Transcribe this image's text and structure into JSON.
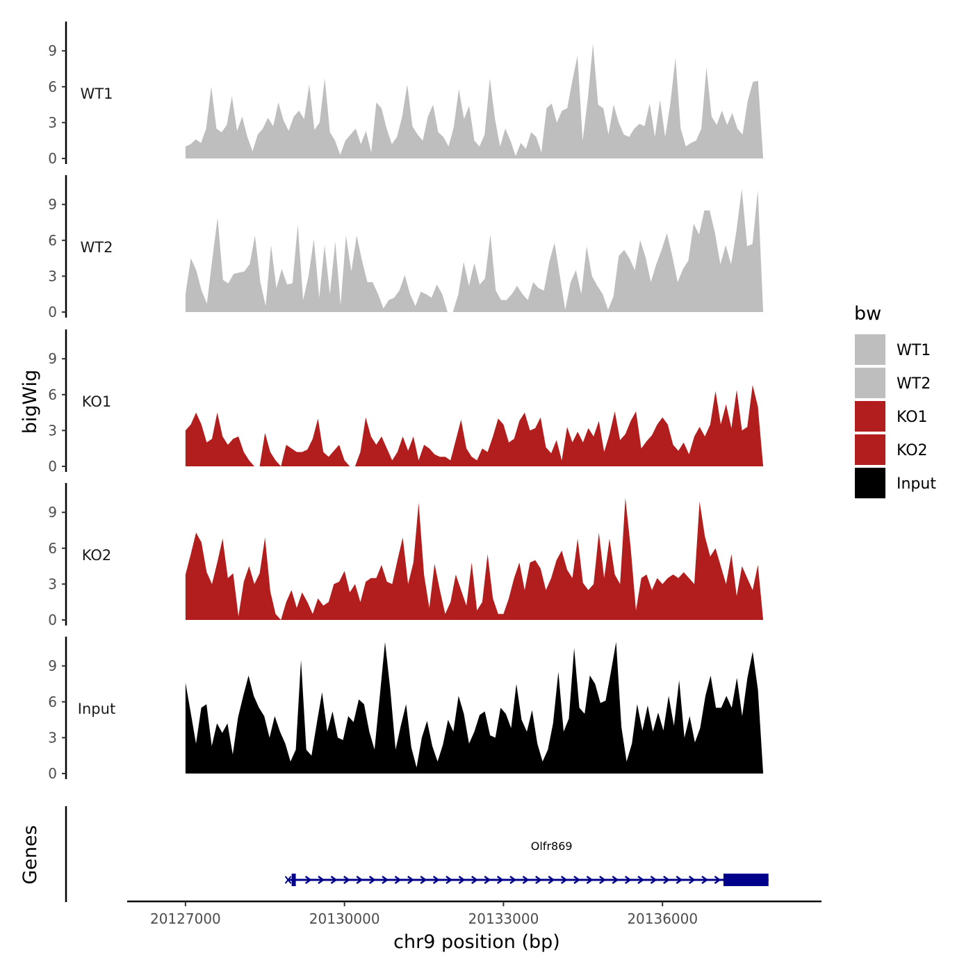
{
  "chart_data": {
    "type": "area",
    "ylabel": "bigWig",
    "xlabel": "chr9 position (bp)",
    "ylim": [
      0,
      11.8
    ],
    "y_ticks": [
      {
        "v": 0,
        "label": "0"
      },
      {
        "v": 3,
        "label": "3"
      },
      {
        "v": 6,
        "label": "6"
      },
      {
        "v": 9,
        "label": "9"
      }
    ],
    "xlim": [
      20125900,
      20139000
    ],
    "x_ticks": [
      {
        "v": 20127000,
        "label": "20127000"
      },
      {
        "v": 20130000,
        "label": "20130000"
      },
      {
        "v": 20133000,
        "label": "20133000"
      },
      {
        "v": 20136000,
        "label": "20136000"
      }
    ],
    "data_start": 20127000,
    "data_end": 20137900,
    "legend": {
      "title": "bw",
      "entries": [
        {
          "label": "WT1",
          "color": "#bebebe"
        },
        {
          "label": "WT2",
          "color": "#bebebe"
        },
        {
          "label": "KO1",
          "color": "#b21e1e"
        },
        {
          "label": "KO2",
          "color": "#b21e1e"
        },
        {
          "label": "Input",
          "color": "#000000"
        }
      ]
    },
    "series": [
      {
        "name": "WT1",
        "color": "#bebebe",
        "values": [
          1.0,
          1.2,
          1.6,
          1.3,
          2.5,
          6.0,
          2.5,
          2.2,
          2.8,
          5.2,
          2.3,
          3.5,
          1.8,
          0.6,
          2.0,
          2.5,
          3.4,
          2.7,
          4.7,
          3.2,
          2.3,
          3.5,
          4.0,
          3.3,
          6.2,
          2.4,
          3.0,
          6.7,
          2.2,
          1.5,
          0.3,
          1.5,
          2.0,
          2.5,
          1.2,
          2.3,
          0.5,
          4.7,
          4.2,
          2.5,
          1.2,
          1.8,
          3.5,
          6.2,
          2.7,
          2.0,
          1.5,
          3.5,
          4.5,
          2.2,
          1.8,
          1.0,
          2.6,
          5.8,
          3.3,
          4.4,
          1.5,
          1.0,
          2.0,
          6.7,
          3.3,
          1.0,
          2.5,
          1.5,
          0.2,
          1.3,
          0.8,
          2.2,
          1.8,
          0.5,
          4.2,
          4.6,
          3.0,
          4.0,
          4.2,
          6.5,
          8.6,
          1.5,
          5.0,
          9.6,
          4.5,
          4.2,
          2.0,
          4.5,
          3.0,
          2.0,
          1.8,
          2.5,
          2.9,
          2.7,
          4.6,
          1.8,
          4.9,
          1.8,
          4.6,
          8.4,
          2.5,
          1.0,
          1.3,
          1.5,
          2.5,
          7.6,
          3.5,
          2.8,
          4.0,
          2.8,
          3.8,
          2.5,
          2.0,
          4.8,
          6.4,
          6.5,
          0.0
        ]
      },
      {
        "name": "WT2",
        "color": "#bebebe",
        "values": [
          1.5,
          4.5,
          3.5,
          1.8,
          0.7,
          4.4,
          7.9,
          2.7,
          2.4,
          3.2,
          3.3,
          3.4,
          4.0,
          6.4,
          2.5,
          0.5,
          5.6,
          2.0,
          3.6,
          2.3,
          2.4,
          7.3,
          1.0,
          3.0,
          6.1,
          1.2,
          5.6,
          1.5,
          5.9,
          0.6,
          6.4,
          3.4,
          6.4,
          4.3,
          2.5,
          2.5,
          1.5,
          0.3,
          1.0,
          1.2,
          1.8,
          3.1,
          1.5,
          0.5,
          1.7,
          1.5,
          1.2,
          2.3,
          1.5,
          0.0,
          0.0,
          1.5,
          4.2,
          2.2,
          4.1,
          2.3,
          2.8,
          6.5,
          1.8,
          1.0,
          1.0,
          1.5,
          2.2,
          1.5,
          1.0,
          2.5,
          2.0,
          1.8,
          4.2,
          5.8,
          3.0,
          0.2,
          2.5,
          3.5,
          1.5,
          5.5,
          3.0,
          2.2,
          1.5,
          0.2,
          1.3,
          4.7,
          5.2,
          4.5,
          3.5,
          6.0,
          4.6,
          2.5,
          4.0,
          5.2,
          6.6,
          4.7,
          2.5,
          3.6,
          4.3,
          7.4,
          6.5,
          8.5,
          8.5,
          6.6,
          4.0,
          5.6,
          4.0,
          6.8,
          10.3,
          5.5,
          5.7,
          10.2,
          0.0
        ]
      },
      {
        "name": "KO1",
        "color": "#b21e1e",
        "values": [
          3.0,
          3.5,
          4.5,
          3.5,
          2.0,
          2.3,
          4.5,
          2.5,
          1.8,
          2.3,
          2.5,
          1.2,
          0.5,
          0.0,
          0.0,
          2.8,
          1.2,
          0.5,
          0.0,
          1.8,
          1.5,
          1.2,
          1.2,
          1.4,
          2.3,
          4.0,
          1.2,
          0.8,
          1.3,
          1.8,
          0.5,
          0.0,
          0.0,
          1.2,
          4.1,
          2.5,
          1.8,
          2.5,
          1.5,
          0.5,
          1.2,
          2.5,
          1.3,
          2.5,
          0.5,
          1.8,
          1.5,
          1.0,
          0.8,
          0.8,
          0.5,
          2.2,
          3.9,
          1.5,
          0.8,
          0.5,
          1.5,
          1.2,
          2.5,
          4.0,
          3.5,
          2.0,
          2.3,
          3.8,
          4.5,
          3.0,
          3.2,
          4.1,
          1.6,
          1.1,
          2.2,
          0.5,
          3.3,
          2.0,
          2.9,
          2.0,
          3.2,
          2.5,
          3.8,
          1.2,
          2.7,
          4.6,
          2.2,
          2.7,
          3.8,
          4.6,
          1.5,
          2.1,
          2.6,
          3.5,
          4.1,
          3.5,
          1.8,
          1.3,
          2.0,
          1.0,
          2.5,
          3.3,
          2.5,
          3.5,
          6.3,
          3.5,
          5.2,
          3.2,
          6.4,
          3.0,
          3.3,
          6.8,
          5.0,
          0.0
        ]
      },
      {
        "name": "KO2",
        "color": "#b21e1e",
        "values": [
          3.8,
          5.5,
          7.3,
          6.5,
          4.0,
          3.0,
          4.8,
          6.8,
          3.5,
          3.9,
          0.3,
          3.2,
          4.5,
          3.0,
          3.9,
          6.9,
          2.4,
          0.5,
          0.0,
          1.5,
          2.5,
          1.0,
          2.3,
          1.5,
          0.5,
          1.8,
          1.2,
          1.5,
          3.0,
          3.2,
          4.1,
          2.3,
          3.0,
          1.5,
          3.2,
          3.5,
          3.5,
          4.6,
          3.2,
          3.0,
          5.0,
          6.9,
          3.0,
          4.8,
          9.8,
          3.8,
          1.0,
          4.7,
          2.5,
          0.5,
          1.5,
          3.8,
          2.5,
          1.2,
          4.8,
          0.8,
          1.5,
          5.5,
          1.8,
          0.5,
          0.5,
          1.8,
          3.5,
          4.8,
          2.5,
          4.8,
          5.0,
          4.3,
          2.5,
          3.5,
          5.0,
          5.8,
          4.2,
          3.5,
          6.8,
          3.1,
          2.5,
          3.0,
          7.3,
          3.5,
          6.8,
          3.8,
          3.0,
          10.2,
          6.0,
          0.8,
          3.5,
          3.8,
          2.5,
          3.5,
          3.0,
          3.5,
          3.8,
          3.5,
          4.0,
          3.5,
          3.0,
          9.9,
          7.0,
          5.3,
          6.0,
          4.5,
          3.0,
          5.5,
          2.0,
          4.5,
          3.5,
          2.5,
          4.6,
          0.0
        ]
      },
      {
        "name": "Input",
        "color": "#000000",
        "values": [
          7.6,
          5.1,
          2.5,
          5.5,
          5.8,
          2.3,
          4.2,
          3.4,
          4.2,
          1.6,
          4.7,
          6.5,
          8.2,
          6.5,
          5.5,
          4.8,
          3.0,
          4.8,
          3.5,
          2.5,
          1.0,
          2.0,
          9.5,
          2.0,
          1.5,
          4.2,
          6.8,
          3.5,
          5.2,
          3.0,
          2.8,
          4.8,
          4.3,
          6.2,
          5.8,
          3.5,
          2.0,
          6.5,
          11.0,
          7.0,
          2.0,
          4.0,
          5.8,
          2.2,
          0.5,
          3.0,
          4.4,
          2.3,
          1.0,
          2.4,
          4.5,
          3.5,
          6.5,
          5.0,
          2.5,
          3.5,
          4.9,
          5.2,
          3.2,
          3.0,
          5.5,
          5.0,
          3.8,
          7.5,
          4.5,
          3.5,
          5.3,
          2.5,
          1.0,
          2.0,
          4.2,
          8.5,
          3.5,
          4.6,
          10.5,
          5.5,
          5.0,
          8.2,
          7.5,
          5.9,
          6.1,
          8.5,
          11.0,
          3.9,
          1.0,
          2.5,
          5.8,
          3.6,
          5.7,
          3.5,
          5.1,
          3.6,
          6.5,
          4.0,
          7.8,
          3.0,
          4.8,
          2.6,
          3.8,
          6.5,
          8.2,
          5.5,
          5.5,
          6.5,
          5.5,
          8.0,
          4.8,
          8.0,
          10.2,
          7.0,
          0.0
        ]
      }
    ],
    "genes": {
      "ylabel": "Genes",
      "items": [
        {
          "name": "Olfr869",
          "start": 20128950,
          "end": 20138000,
          "thick_start": 20137150,
          "strand": "+",
          "color": "#00008b"
        }
      ]
    }
  }
}
